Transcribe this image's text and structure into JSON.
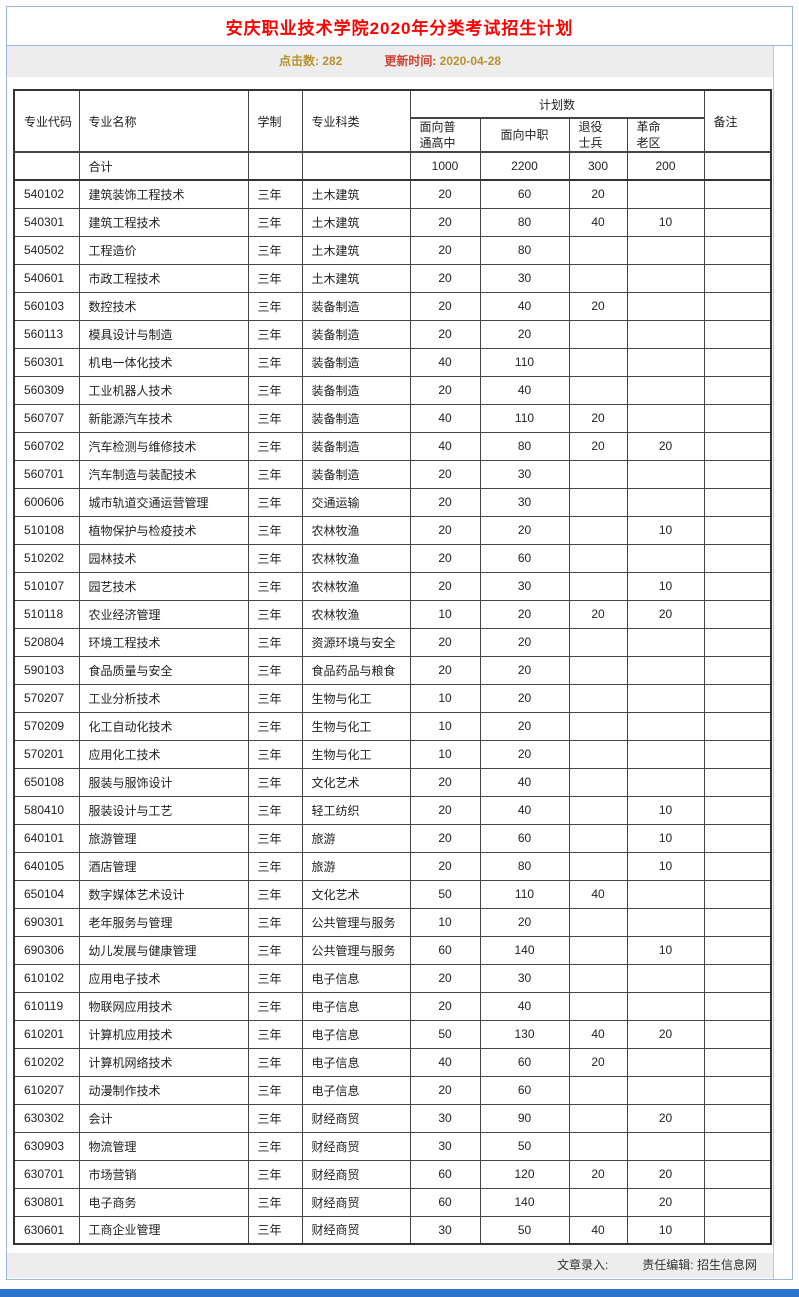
{
  "page": {
    "title": "安庆职业技术学院2020年分类考试招生计划",
    "meta": {
      "hits_label": "点击数:",
      "hits_value": "282",
      "updated_label": "更新时间:",
      "updated_value": "2020-04-28"
    },
    "footer": {
      "entry_label": "文章录入:",
      "editor_label": "责任编辑:",
      "editor_value": "招生信息网"
    },
    "colors": {
      "title_red": "#ff0000",
      "meta_gold": "#b9922f",
      "meta_red": "#cc4433",
      "bar_gray": "#ededed",
      "page_border_blue": "#9cb6de",
      "bottom_bar_blue": "#2b74cb"
    }
  },
  "table": {
    "headers": {
      "code": "专业代码",
      "name": "专业名称",
      "duration": "学制",
      "category": "专业科类",
      "plan_group": "计划数",
      "plan_regular_hs": "面向普\n通高中",
      "plan_vocational": "面向中职",
      "plan_veterans": "退役\n士兵",
      "plan_old_area": "革命\n老区",
      "remarks": "备注"
    },
    "total_row": {
      "name": "合计",
      "regular_hs": "1000",
      "vocational": "2200",
      "veterans": "300",
      "old_area": "200"
    },
    "rows": [
      [
        "540102",
        "建筑装饰工程技术",
        "三年",
        "土木建筑",
        "20",
        "60",
        "20",
        "",
        ""
      ],
      [
        "540301",
        "建筑工程技术",
        "三年",
        "土木建筑",
        "20",
        "80",
        "40",
        "10",
        ""
      ],
      [
        "540502",
        "工程造价",
        "三年",
        "土木建筑",
        "20",
        "80",
        "",
        "",
        ""
      ],
      [
        "540601",
        "市政工程技术",
        "三年",
        "土木建筑",
        "20",
        "30",
        "",
        "",
        ""
      ],
      [
        "560103",
        "数控技术",
        "三年",
        "装备制造",
        "20",
        "40",
        "20",
        "",
        ""
      ],
      [
        "560113",
        "模具设计与制造",
        "三年",
        "装备制造",
        "20",
        "20",
        "",
        "",
        ""
      ],
      [
        "560301",
        "机电一体化技术",
        "三年",
        "装备制造",
        "40",
        "110",
        "",
        "",
        ""
      ],
      [
        "560309",
        "工业机器人技术",
        "三年",
        "装备制造",
        "20",
        "40",
        "",
        "",
        ""
      ],
      [
        "560707",
        "新能源汽车技术",
        "三年",
        "装备制造",
        "40",
        "110",
        "20",
        "",
        ""
      ],
      [
        "560702",
        "汽车检测与维修技术",
        "三年",
        "装备制造",
        "40",
        "80",
        "20",
        "20",
        ""
      ],
      [
        "560701",
        "汽车制造与装配技术",
        "三年",
        "装备制造",
        "20",
        "30",
        "",
        "",
        ""
      ],
      [
        "600606",
        "城市轨道交通运营管理",
        "三年",
        "交通运输",
        "20",
        "30",
        "",
        "",
        ""
      ],
      [
        "510108",
        "植物保护与检疫技术",
        "三年",
        "农林牧渔",
        "20",
        "20",
        "",
        "10",
        ""
      ],
      [
        "510202",
        "园林技术",
        "三年",
        "农林牧渔",
        "20",
        "60",
        "",
        "",
        ""
      ],
      [
        "510107",
        "园艺技术",
        "三年",
        "农林牧渔",
        "20",
        "30",
        "",
        "10",
        ""
      ],
      [
        "510118",
        "农业经济管理",
        "三年",
        "农林牧渔",
        "10",
        "20",
        "20",
        "20",
        ""
      ],
      [
        "520804",
        "环境工程技术",
        "三年",
        "资源环境与安全",
        "20",
        "20",
        "",
        "",
        ""
      ],
      [
        "590103",
        "食品质量与安全",
        "三年",
        "食品药品与粮食",
        "20",
        "20",
        "",
        "",
        ""
      ],
      [
        "570207",
        "工业分析技术",
        "三年",
        "生物与化工",
        "10",
        "20",
        "",
        "",
        ""
      ],
      [
        "570209",
        "化工自动化技术",
        "三年",
        "生物与化工",
        "10",
        "20",
        "",
        "",
        ""
      ],
      [
        "570201",
        "应用化工技术",
        "三年",
        "生物与化工",
        "10",
        "20",
        "",
        "",
        ""
      ],
      [
        "650108",
        "服装与服饰设计",
        "三年",
        "文化艺术",
        "20",
        "40",
        "",
        "",
        ""
      ],
      [
        "580410",
        "服装设计与工艺",
        "三年",
        "轻工纺织",
        "20",
        "40",
        "",
        "10",
        ""
      ],
      [
        "640101",
        "旅游管理",
        "三年",
        "旅游",
        "20",
        "60",
        "",
        "10",
        ""
      ],
      [
        "640105",
        "酒店管理",
        "三年",
        "旅游",
        "20",
        "80",
        "",
        "10",
        ""
      ],
      [
        "650104",
        "数字媒体艺术设计",
        "三年",
        "文化艺术",
        "50",
        "110",
        "40",
        "",
        ""
      ],
      [
        "690301",
        "老年服务与管理",
        "三年",
        "公共管理与服务",
        "10",
        "20",
        "",
        "",
        ""
      ],
      [
        "690306",
        "幼儿发展与健康管理",
        "三年",
        "公共管理与服务",
        "60",
        "140",
        "",
        "10",
        ""
      ],
      [
        "610102",
        "应用电子技术",
        "三年",
        "电子信息",
        "20",
        "30",
        "",
        "",
        ""
      ],
      [
        "610119",
        "物联网应用技术",
        "三年",
        "电子信息",
        "20",
        "40",
        "",
        "",
        ""
      ],
      [
        "610201",
        "计算机应用技术",
        "三年",
        "电子信息",
        "50",
        "130",
        "40",
        "20",
        ""
      ],
      [
        "610202",
        "计算机网络技术",
        "三年",
        "电子信息",
        "40",
        "60",
        "20",
        "",
        ""
      ],
      [
        "610207",
        "动漫制作技术",
        "三年",
        "电子信息",
        "20",
        "60",
        "",
        "",
        ""
      ],
      [
        "630302",
        "会计",
        "三年",
        "财经商贸",
        "30",
        "90",
        "",
        "20",
        ""
      ],
      [
        "630903",
        "物流管理",
        "三年",
        "财经商贸",
        "30",
        "50",
        "",
        "",
        ""
      ],
      [
        "630701",
        "市场营销",
        "三年",
        "财经商贸",
        "60",
        "120",
        "20",
        "20",
        ""
      ],
      [
        "630801",
        "电子商务",
        "三年",
        "财经商贸",
        "60",
        "140",
        "",
        "20",
        ""
      ],
      [
        "630601",
        "工商企业管理",
        "三年",
        "财经商贸",
        "30",
        "50",
        "40",
        "10",
        ""
      ]
    ]
  }
}
